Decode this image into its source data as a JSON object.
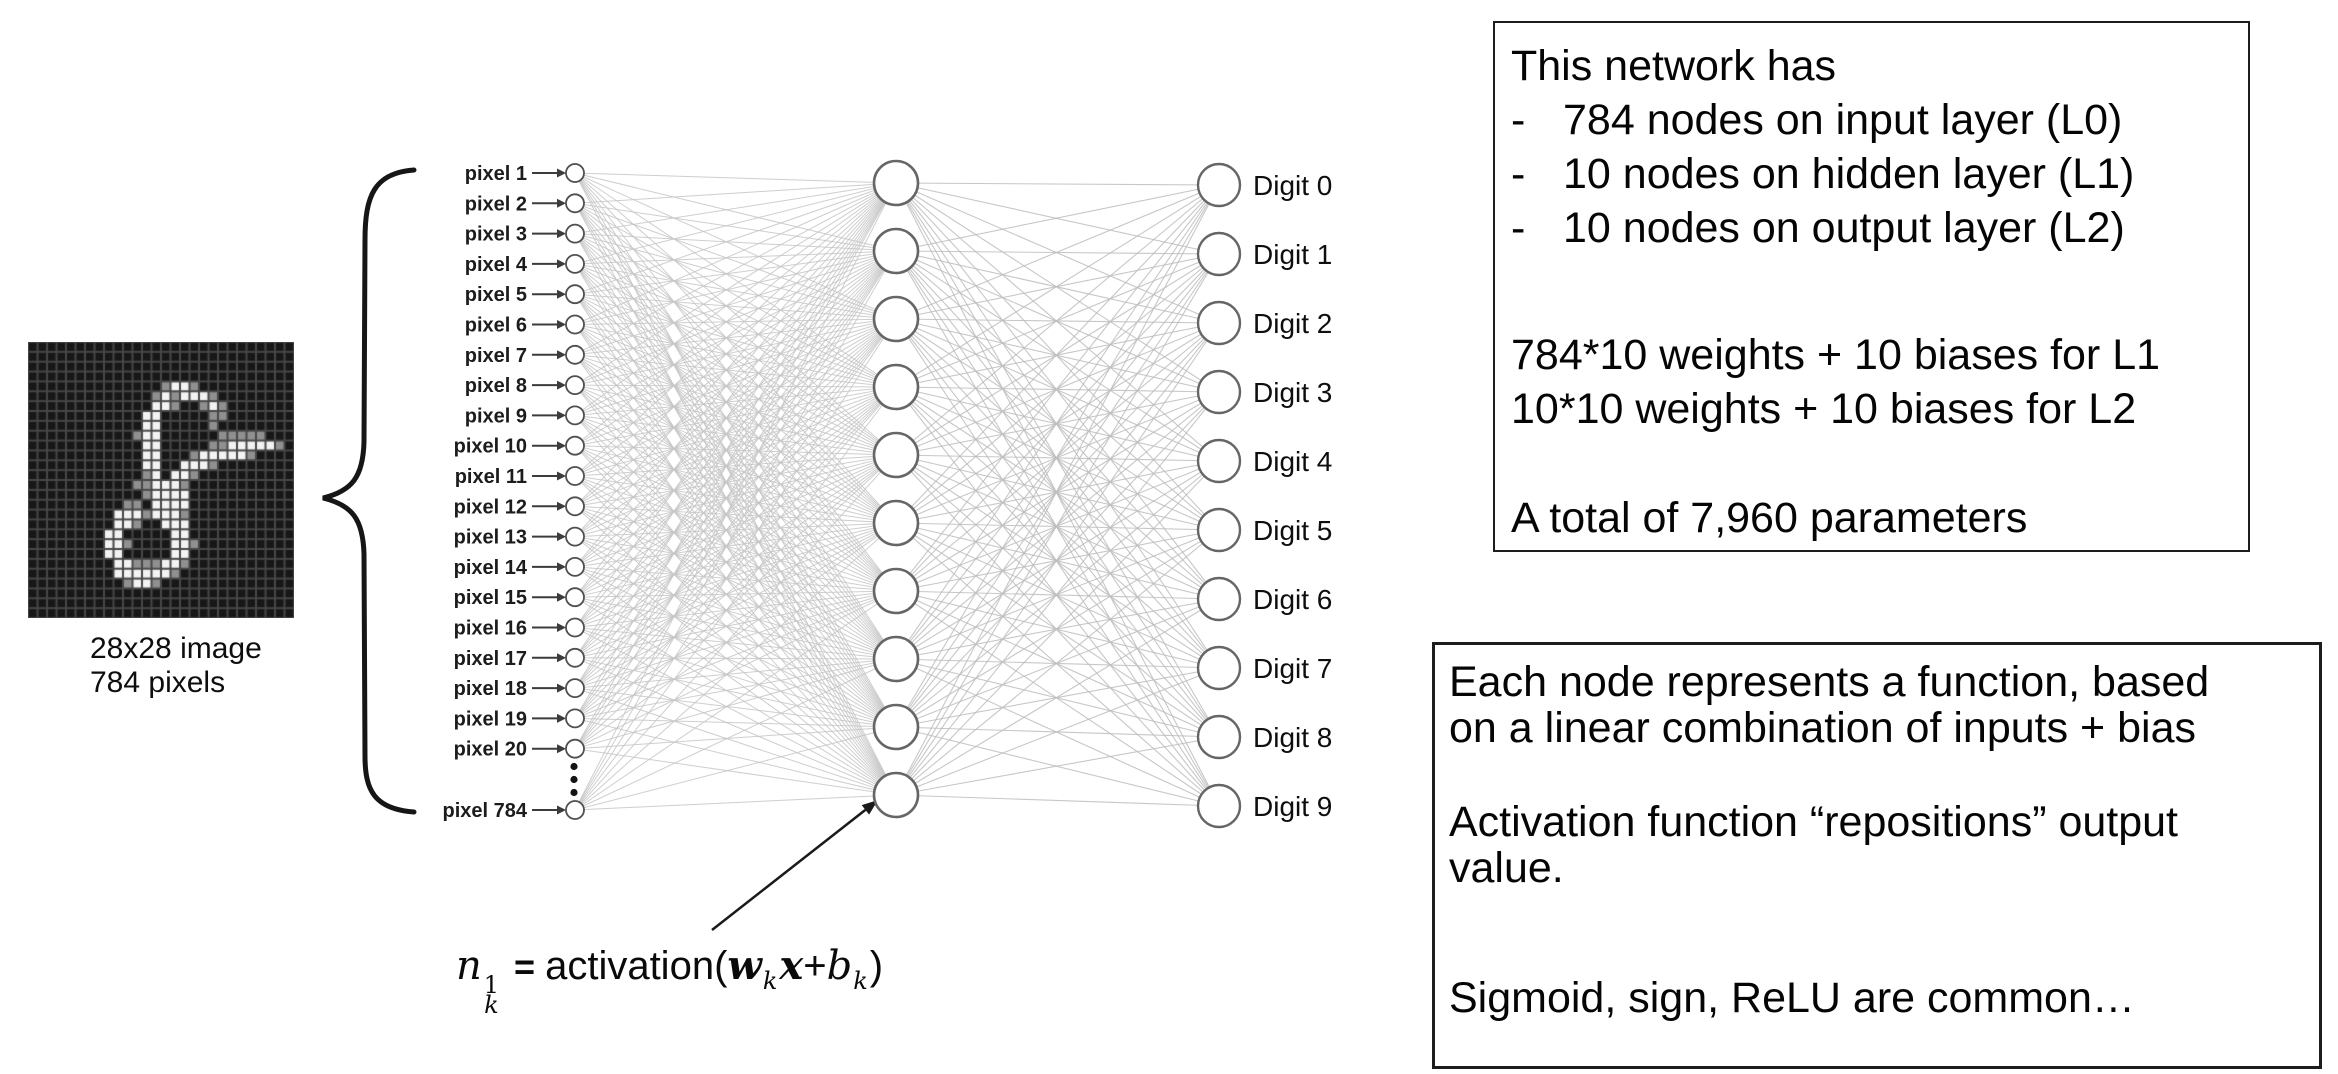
{
  "digit_image": {
    "caption_line1": "28x28 image",
    "caption_line2": "784 pixels",
    "grid_size": 28,
    "palette": {
      ".": "#171717",
      "o": "#909090",
      "X": "#f3f3f3",
      "grid": "#474747"
    },
    "bitmap": [
      "............................",
      "............................",
      "............................",
      "............................",
      "..............oXXo..........",
      ".............oXoXXXo........",
      ".............XXo..oXo.......",
      "............XX.....oo.......",
      "............XX.....o........",
      "...........oXX......ooooo...",
      "............XX.....ooXXXXXo.",
      "............XX...oXXXXXo....",
      "............XX..XXXo........",
      "............oX.XXo..........",
      "...........ooXXXo...........",
      "............oXXXX...........",
      "..........oo.XXXX...........",
      ".........XXXoXXXo...........",
      ".........XXo..XXX...........",
      "........XX.....XX...........",
      "........XXo....XXo..........",
      "........XX.....XX...........",
      ".........XXoooXXo...........",
      ".........XXXXXXo............",
      "..........oXXo..............",
      "............................",
      "............................",
      "............................"
    ]
  },
  "network": {
    "input_labels": [
      "pixel 1",
      "pixel 2",
      "pixel 3",
      "pixel 4",
      "pixel 5",
      "pixel 6",
      "pixel 7",
      "pixel 8",
      "pixel 9",
      "pixel 10",
      "pixel 11",
      "pixel 12",
      "pixel 13",
      "pixel 14",
      "pixel 15",
      "pixel 16",
      "pixel 17",
      "pixel 18",
      "pixel 19",
      "pixel 20",
      "pixel 784"
    ],
    "hidden_count": 10,
    "output_labels": [
      "Digit 0",
      "Digit 1",
      "Digit 2",
      "Digit 3",
      "Digit 4",
      "Digit 5",
      "Digit 6",
      "Digit 7",
      "Digit 8",
      "Digit 9"
    ],
    "colors": {
      "edge_l0": "#c6c6c6",
      "edge_l1": "#bdbdbd",
      "node_stroke": "#666666",
      "input_stroke": "#4f4f4f",
      "label": "#1c1c1c",
      "arrow": "#3c3c3c",
      "brace": "#161616",
      "pointer": "#1a1a1a"
    }
  },
  "formula": {
    "base": "n",
    "sup": "1",
    "sub": "k",
    "eq": " = ",
    "func": "activation(",
    "w": "w",
    "w_sub": "k",
    "x": "x",
    "plus": "+",
    "b": "b",
    "b_sub": "k",
    "close": ")"
  },
  "box1": {
    "lines": [
      {
        "d": false,
        "t": "This network has"
      },
      {
        "d": true,
        "t": "784 nodes on input layer (L0)"
      },
      {
        "d": true,
        "t": "10 nodes on hidden layer (L1)"
      },
      {
        "d": true,
        "t": "10 nodes on output layer (L2)"
      },
      {
        "d": false,
        "t": ""
      },
      {
        "d": false,
        "t": "784*10 weights + 10 biases for L1"
      },
      {
        "d": false,
        "t": "10*10 weights + 10 biases for L2"
      },
      {
        "d": false,
        "t": ""
      },
      {
        "d": false,
        "t": "A total of 7,960 parameters"
      }
    ]
  },
  "box2": {
    "lines": [
      {
        "d": false,
        "t": "Each node represents a function, based"
      },
      {
        "d": false,
        "t": "on a linear combination of inputs + bias"
      },
      {
        "d": false,
        "t": ""
      },
      {
        "d": false,
        "t": "Activation function “repositions” output"
      },
      {
        "d": false,
        "t": "value."
      },
      {
        "d": false,
        "t": ""
      },
      {
        "d": false,
        "t": "Sigmoid, sign, ReLU are common…"
      }
    ]
  }
}
